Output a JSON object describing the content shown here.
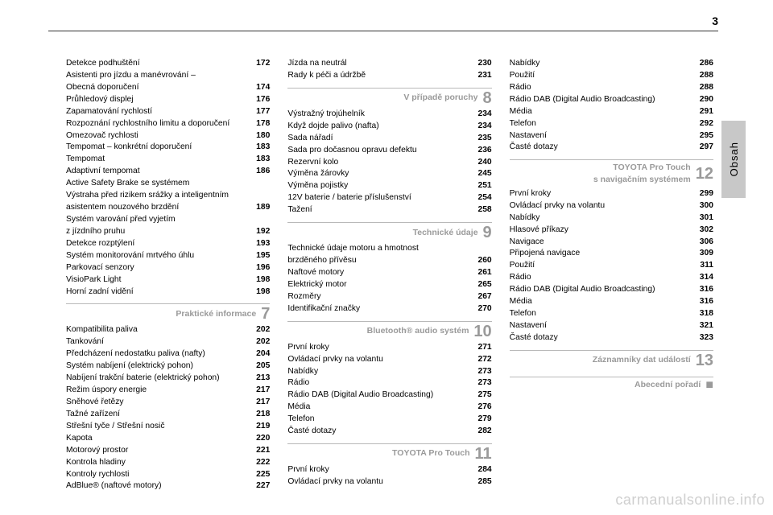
{
  "page_number": "3",
  "side_tab": "Obsah",
  "watermark": "carmanualsonline.info",
  "columns": [
    {
      "items": [
        {
          "type": "entry",
          "label": "Detekce podhuštění",
          "page": "172"
        },
        {
          "type": "entry",
          "label": "Asistenti pro jízdu a manévrování –",
          "page": ""
        },
        {
          "type": "entry",
          "label": "Obecná doporučení",
          "page": "174"
        },
        {
          "type": "entry",
          "label": "Průhledový displej",
          "page": "176"
        },
        {
          "type": "entry",
          "label": "Zapamatování rychlostí",
          "page": "177"
        },
        {
          "type": "entry",
          "label": "Rozpoznání rychlostního limitu a doporučení",
          "page": "178"
        },
        {
          "type": "entry",
          "label": "Omezovač rychlosti",
          "page": "180"
        },
        {
          "type": "entry",
          "label": "Tempomat – konkrétní doporučení",
          "page": "183"
        },
        {
          "type": "entry",
          "label": "Tempomat",
          "page": "183"
        },
        {
          "type": "entry",
          "label": "Adaptivní tempomat",
          "page": "186"
        },
        {
          "type": "entry",
          "label": "Active Safety Brake se systémem",
          "page": ""
        },
        {
          "type": "entry",
          "label": "Výstraha před rizikem srážky a inteligentním",
          "page": ""
        },
        {
          "type": "entry",
          "label": "asistentem nouzového brzdění",
          "page": "189"
        },
        {
          "type": "entry",
          "label": "Systém varování před vyjetím",
          "page": ""
        },
        {
          "type": "entry",
          "label": "z jízdního pruhu",
          "page": "192"
        },
        {
          "type": "entry",
          "label": "Detekce rozptýlení",
          "page": "193"
        },
        {
          "type": "entry",
          "label": "Systém monitorování mrtvého úhlu",
          "page": "195"
        },
        {
          "type": "entry",
          "label": "Parkovací senzory",
          "page": "196"
        },
        {
          "type": "entry",
          "label": "VisioPark Light",
          "page": "198"
        },
        {
          "type": "entry",
          "label": "Horní zadní vidění",
          "page": "198"
        },
        {
          "type": "section",
          "title": "Praktické informace",
          "num": "7"
        },
        {
          "type": "entry",
          "label": "Kompatibilita paliva",
          "page": "202"
        },
        {
          "type": "entry",
          "label": "Tankování",
          "page": "202"
        },
        {
          "type": "entry",
          "label": "Předcházení nedostatku paliva (nafty)",
          "page": "204"
        },
        {
          "type": "entry",
          "label": "Systém nabíjení (elektrický pohon)",
          "page": "205"
        },
        {
          "type": "entry",
          "label": "Nabíjení trakční baterie (elektrický pohon)",
          "page": "213"
        },
        {
          "type": "entry",
          "label": "Režim úspory energie",
          "page": "217"
        },
        {
          "type": "entry",
          "label": "Sněhové řetězy",
          "page": "217"
        },
        {
          "type": "entry",
          "label": "Tažné zařízení",
          "page": "218"
        },
        {
          "type": "entry",
          "label": "Střešní tyče / Střešní nosič",
          "page": "219"
        },
        {
          "type": "entry",
          "label": "Kapota",
          "page": "220"
        },
        {
          "type": "entry",
          "label": "Motorový prostor",
          "page": "221"
        },
        {
          "type": "entry",
          "label": "Kontrola hladiny",
          "page": "222"
        },
        {
          "type": "entry",
          "label": "Kontroly rychlosti",
          "page": "225"
        },
        {
          "type": "entry",
          "label": "AdBlue® (naftové motory)",
          "page": "227"
        }
      ]
    },
    {
      "items": [
        {
          "type": "entry",
          "label": "Jízda na neutrál",
          "page": "230"
        },
        {
          "type": "entry",
          "label": "Rady k péči a údržbě",
          "page": "231"
        },
        {
          "type": "section",
          "title": "V případě poruchy",
          "num": "8"
        },
        {
          "type": "entry",
          "label": "Výstražný trojúhelník",
          "page": "234"
        },
        {
          "type": "entry",
          "label": "Když dojde palivo (nafta)",
          "page": "234"
        },
        {
          "type": "entry",
          "label": "Sada nářadí",
          "page": "235"
        },
        {
          "type": "entry",
          "label": "Sada pro dočasnou opravu defektu",
          "page": "236"
        },
        {
          "type": "entry",
          "label": "Rezervní kolo",
          "page": "240"
        },
        {
          "type": "entry",
          "label": "Výměna žárovky",
          "page": "245"
        },
        {
          "type": "entry",
          "label": "Výměna pojistky",
          "page": "251"
        },
        {
          "type": "entry",
          "label": "12V baterie / baterie příslušenství",
          "page": "254"
        },
        {
          "type": "entry",
          "label": "Tažení",
          "page": "258"
        },
        {
          "type": "section",
          "title": "Technické údaje",
          "num": "9"
        },
        {
          "type": "entry",
          "label": "Technické údaje motoru a hmotnost",
          "page": ""
        },
        {
          "type": "entry",
          "label": "brzděného přívěsu",
          "page": "260"
        },
        {
          "type": "entry",
          "label": "Naftové motory",
          "page": "261"
        },
        {
          "type": "entry",
          "label": "Elektrický motor",
          "page": "265"
        },
        {
          "type": "entry",
          "label": "Rozměry",
          "page": "267"
        },
        {
          "type": "entry",
          "label": "Identifikační značky",
          "page": "270"
        },
        {
          "type": "section",
          "title": "Bluetooth® audio systém",
          "num": "10"
        },
        {
          "type": "entry",
          "label": "První kroky",
          "page": "271"
        },
        {
          "type": "entry",
          "label": "Ovládací prvky na volantu",
          "page": "272"
        },
        {
          "type": "entry",
          "label": "Nabídky",
          "page": "273"
        },
        {
          "type": "entry",
          "label": "Rádio",
          "page": "273"
        },
        {
          "type": "entry",
          "label": "Rádio DAB (Digital Audio Broadcasting)",
          "page": "275"
        },
        {
          "type": "entry",
          "label": "Média",
          "page": "276"
        },
        {
          "type": "entry",
          "label": "Telefon",
          "page": "279"
        },
        {
          "type": "entry",
          "label": "Časté dotazy",
          "page": "282"
        },
        {
          "type": "section",
          "title": "TOYOTA Pro Touch",
          "num": "11"
        },
        {
          "type": "entry",
          "label": "První kroky",
          "page": "284"
        },
        {
          "type": "entry",
          "label": "Ovládací prvky na volantu",
          "page": "285"
        }
      ]
    },
    {
      "items": [
        {
          "type": "entry",
          "label": "Nabídky",
          "page": "286"
        },
        {
          "type": "entry",
          "label": "Použití",
          "page": "288"
        },
        {
          "type": "entry",
          "label": "Rádio",
          "page": "288"
        },
        {
          "type": "entry",
          "label": "Rádio DAB (Digital Audio Broadcasting)",
          "page": "290"
        },
        {
          "type": "entry",
          "label": "Média",
          "page": "291"
        },
        {
          "type": "entry",
          "label": "Telefon",
          "page": "292"
        },
        {
          "type": "entry",
          "label": "Nastavení",
          "page": "295"
        },
        {
          "type": "entry",
          "label": "Časté dotazy",
          "page": "297"
        },
        {
          "type": "section",
          "title": "TOYOTA Pro Touch",
          "sub": "s navigačním systémem",
          "num": "12"
        },
        {
          "type": "entry",
          "label": "První kroky",
          "page": "299"
        },
        {
          "type": "entry",
          "label": "Ovládací prvky na volantu",
          "page": "300"
        },
        {
          "type": "entry",
          "label": "Nabídky",
          "page": "301"
        },
        {
          "type": "entry",
          "label": "Hlasové příkazy",
          "page": "302"
        },
        {
          "type": "entry",
          "label": "Navigace",
          "page": "306"
        },
        {
          "type": "entry",
          "label": "Připojená navigace",
          "page": "309"
        },
        {
          "type": "entry",
          "label": "Použití",
          "page": "311"
        },
        {
          "type": "entry",
          "label": "Rádio",
          "page": "314"
        },
        {
          "type": "entry",
          "label": "Rádio DAB (Digital Audio Broadcasting)",
          "page": "316"
        },
        {
          "type": "entry",
          "label": "Média",
          "page": "316"
        },
        {
          "type": "entry",
          "label": "Telefon",
          "page": "318"
        },
        {
          "type": "entry",
          "label": "Nastavení",
          "page": "321"
        },
        {
          "type": "entry",
          "label": "Časté dotazy",
          "page": "323"
        },
        {
          "type": "section",
          "title": "Záznamníky dat událostí",
          "num": "13"
        },
        {
          "type": "section",
          "title": "Abecední pořadí",
          "num": "■",
          "bullet": true
        }
      ]
    }
  ]
}
